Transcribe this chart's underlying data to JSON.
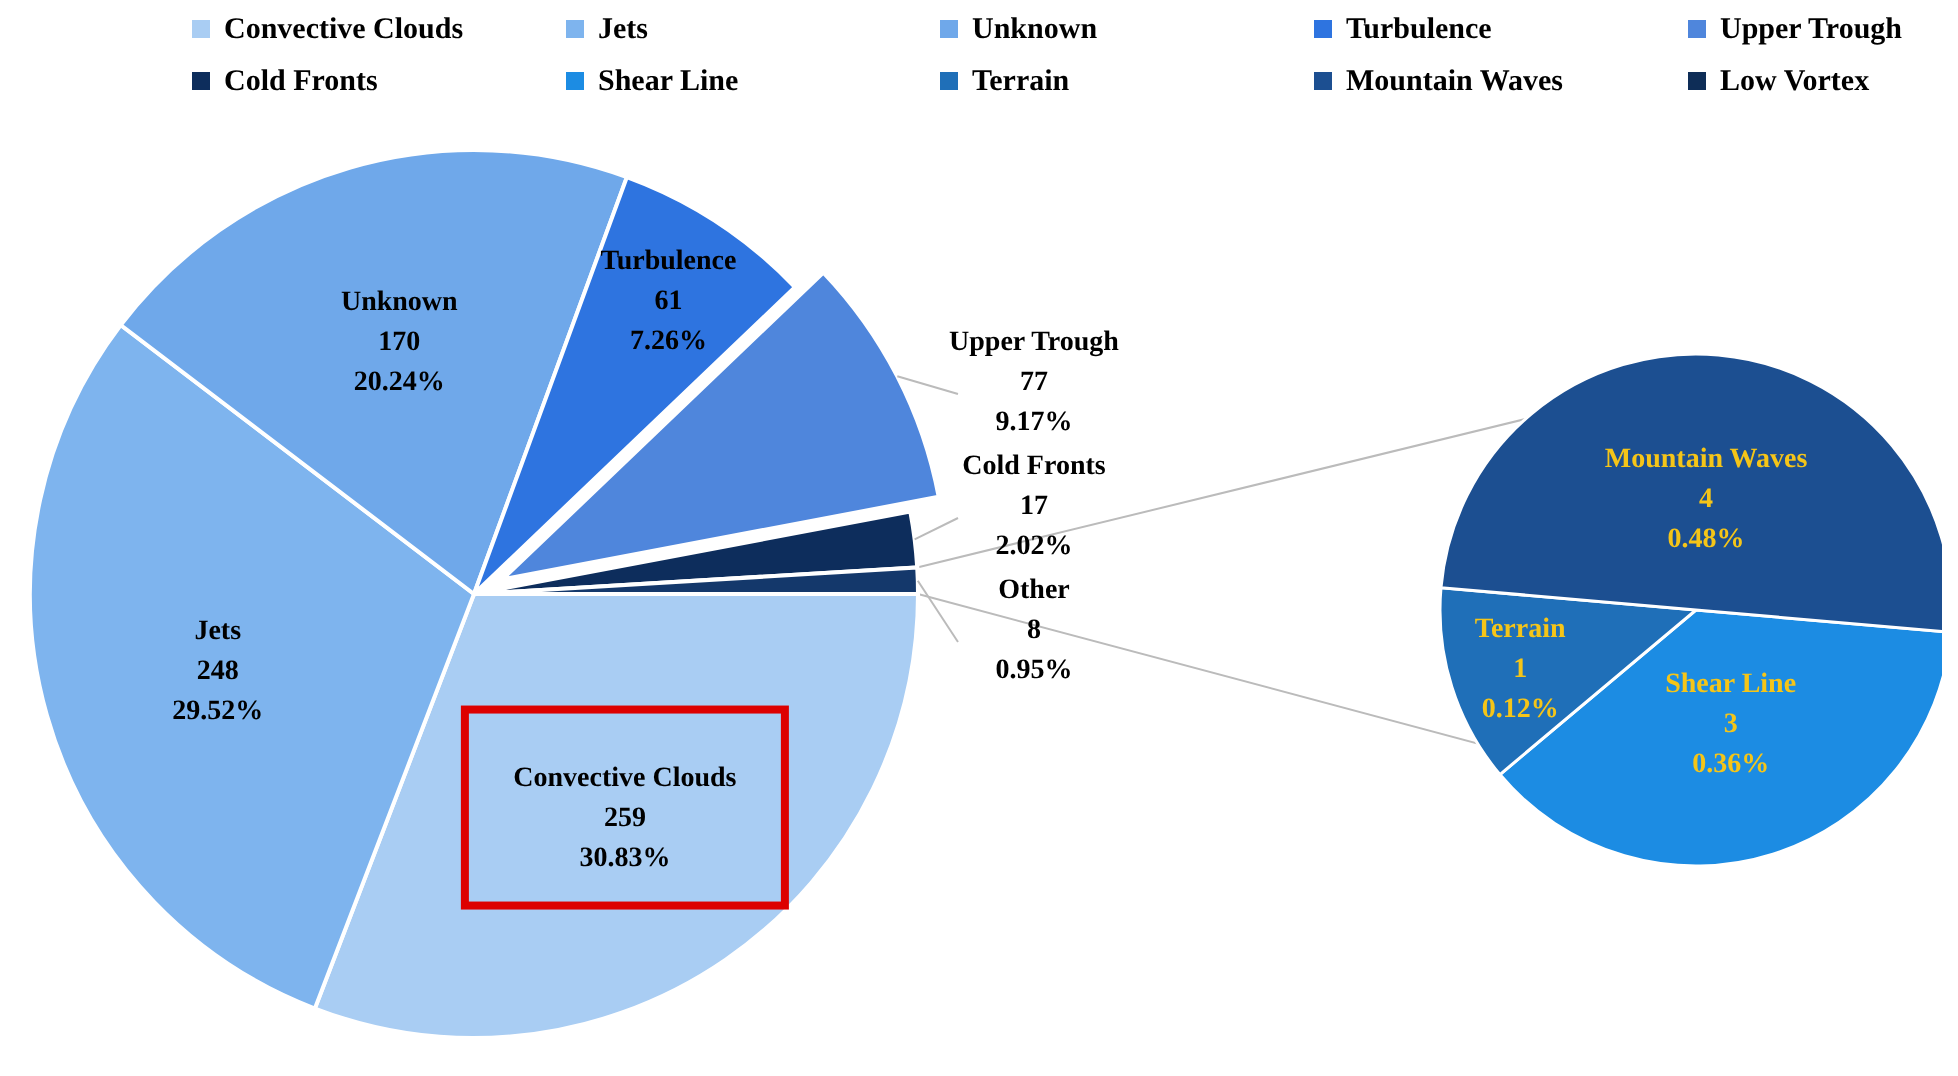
{
  "chart_data": [
    {
      "type": "pie",
      "categories": [
        "Convective Clouds",
        "Jets",
        "Unknown",
        "Turbulence",
        "Upper Trough",
        "Cold Fronts",
        "Other"
      ],
      "values": [
        259,
        248,
        170,
        61,
        77,
        17,
        8
      ],
      "value_labels": [
        "259\n30.83%",
        "248\n29.52%",
        "170\n20.24%",
        "61\n7.26%",
        "77\n9.17%",
        "17\n2.02%",
        "8\n0.95%"
      ],
      "colors": [
        "#a9cdf3",
        "#7eb4ee",
        "#6fa8ea",
        "#2e74e0",
        "#4f86dc",
        "#0d2d5c",
        "#14386b"
      ],
      "legend": "top"
    },
    {
      "type": "pie",
      "categories": [
        "Shear Line",
        "Terrain",
        "Mountain Waves",
        "Low Vortex"
      ],
      "values": [
        3,
        1,
        4,
        0
      ],
      "value_labels": [
        "3\n0.36%",
        "1\n0.12%",
        "4\n0.48%",
        null
      ],
      "colors": [
        "#1c8ce3",
        "#1f6fb8",
        "#1c4f91",
        "#0e2d57"
      ],
      "legend": "top"
    }
  ]
}
